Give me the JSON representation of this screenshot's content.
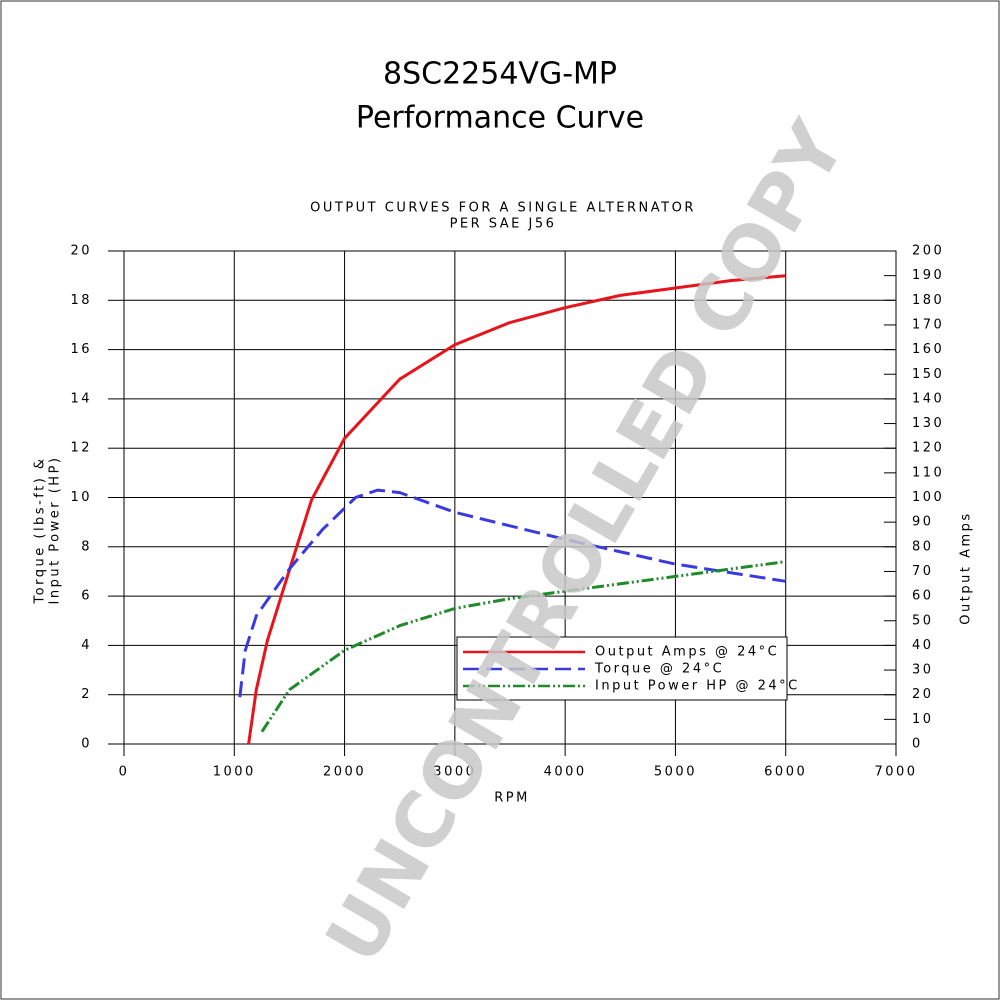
{
  "chart_data": {
    "type": "line",
    "title": [
      "8SC2254VG-MP",
      "Performance Curve"
    ],
    "subtitle": [
      "OUTPUT CURVES FOR A SINGLE ALTERNATOR",
      "PER SAE J56"
    ],
    "x_label": "RPM",
    "y_label": [
      "Torque (lbs-ft) &",
      "Input Power (HP)"
    ],
    "y2_label": "Output Amps",
    "watermark": "UNCONTROLLED COPY",
    "xlim": [
      0,
      7000
    ],
    "xticks": [
      0,
      1000,
      2000,
      3000,
      4000,
      5000,
      6000,
      7000
    ],
    "ylim": [
      0,
      20
    ],
    "yticks": [
      0,
      2,
      4,
      6,
      8,
      10,
      12,
      14,
      16,
      18,
      20
    ],
    "y2lim": [
      0,
      200
    ],
    "y2ticks": [
      0,
      10,
      20,
      30,
      40,
      50,
      60,
      70,
      80,
      90,
      100,
      110,
      120,
      130,
      140,
      150,
      160,
      170,
      180,
      190,
      200
    ],
    "grid": true,
    "series": [
      {
        "name": "Output Amps @ 24°C",
        "color": "#e8141c",
        "style": "solid",
        "axis": "y2",
        "x": [
          1130,
          1200,
          1300,
          1500,
          1700,
          2000,
          2500,
          3000,
          3500,
          4000,
          4500,
          5000,
          5500,
          6000
        ],
        "values": [
          0,
          22,
          42,
          70.6,
          99,
          124,
          148,
          162,
          171,
          177,
          182,
          185,
          188,
          190
        ]
      },
      {
        "name": "Torque @ 24°C",
        "color": "#3a3ae0",
        "style": "dashed",
        "x": [
          1050,
          1100,
          1200,
          1500,
          1800,
          2100,
          2300,
          2500,
          3000,
          4000,
          5000,
          6000
        ],
        "values": [
          1.9,
          3.8,
          5.2,
          7.1,
          8.7,
          10.0,
          10.3,
          10.2,
          9.4,
          8.3,
          7.3,
          6.6
        ]
      },
      {
        "name": "Input Power HP @ 24°C",
        "color": "#1e8a2a",
        "style": "dashdot",
        "x": [
          1250,
          1500,
          2000,
          2500,
          3000,
          3500,
          4000,
          5000,
          6000
        ],
        "values": [
          0.5,
          2.2,
          3.8,
          4.8,
          5.5,
          5.9,
          6.2,
          6.8,
          7.4
        ]
      }
    ]
  }
}
